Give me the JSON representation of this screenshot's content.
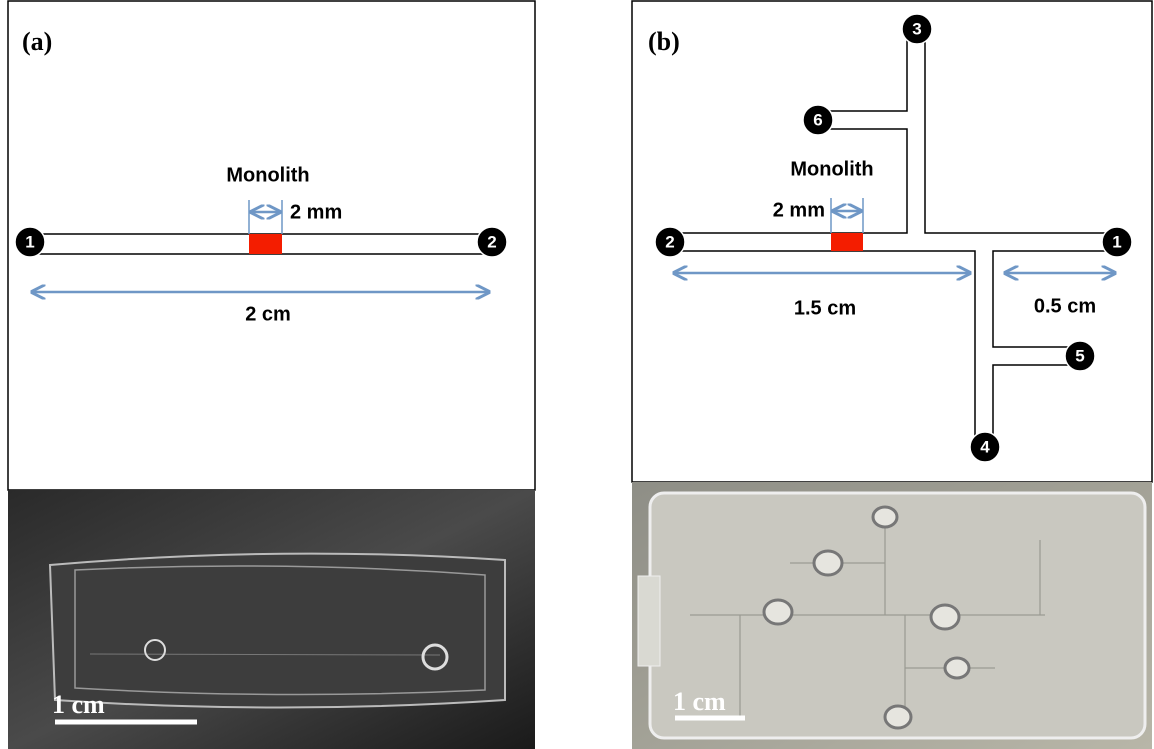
{
  "panels": [
    {
      "label": "(a)",
      "monolith_label": "Monolith",
      "monolith_width": "2 mm",
      "length": "2 cm",
      "ports": [
        "1",
        "2"
      ],
      "scale_bar": "1 cm"
    },
    {
      "label": "(b)",
      "monolith_label": "Monolith",
      "monolith_width": "2 mm",
      "lengths": [
        "1.5 cm",
        "0.5 cm"
      ],
      "ports": [
        "1",
        "2",
        "3",
        "4",
        "5",
        "6"
      ],
      "scale_bar": "1 cm"
    }
  ]
}
